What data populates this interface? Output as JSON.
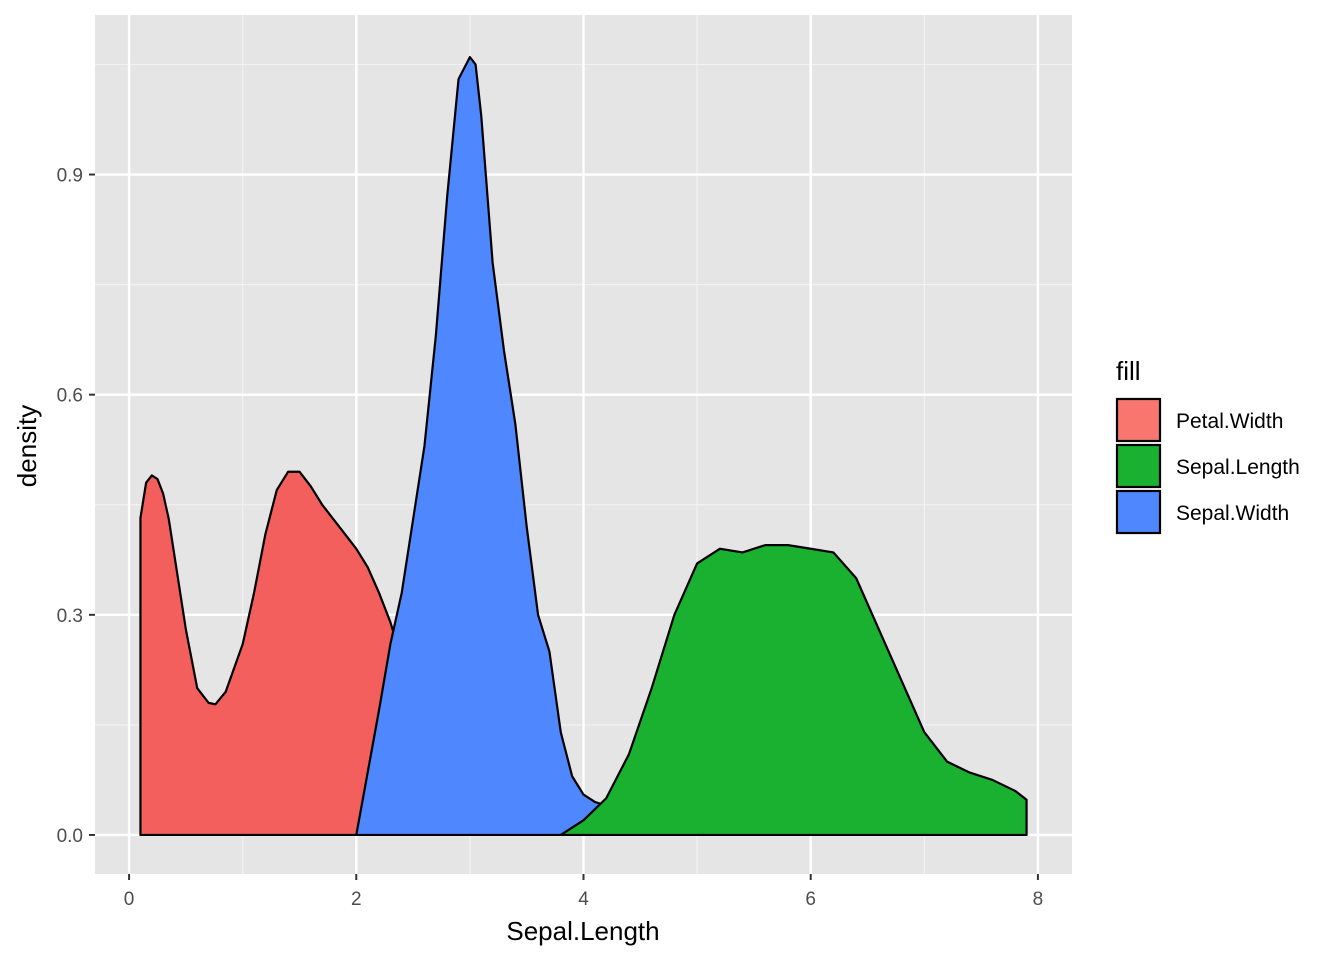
{
  "chart_data": {
    "type": "area",
    "subtype": "density",
    "xlabel": "Sepal.Length",
    "ylabel": "density",
    "xlim": [
      -0.3,
      8.3
    ],
    "ylim": [
      -0.0532,
      1.1174
    ],
    "x_ticks": [
      0,
      2,
      4,
      6,
      8
    ],
    "x_tick_labels": [
      "0",
      "2",
      "4",
      "6",
      "8"
    ],
    "y_ticks": [
      0.0,
      0.3,
      0.6,
      0.9
    ],
    "y_tick_labels": [
      "0.0",
      "0.3",
      "0.6",
      "0.9"
    ],
    "grid": true,
    "panel_background": "#e5e5e5",
    "legend": {
      "title": "fill",
      "position": "right",
      "entries": [
        {
          "label": "Petal.Width",
          "color": "#f8766d"
        },
        {
          "label": "Sepal.Length",
          "color": "#19b12f"
        },
        {
          "label": "Sepal.Width",
          "color": "#4f87ff"
        }
      ]
    },
    "series": [
      {
        "name": "Petal.Width",
        "color": "#f35f5c",
        "x": [
          0.1,
          0.15,
          0.2,
          0.25,
          0.3,
          0.35,
          0.4,
          0.5,
          0.6,
          0.7,
          0.76,
          0.85,
          1.0,
          1.1,
          1.2,
          1.3,
          1.4,
          1.5,
          1.6,
          1.7,
          1.8,
          1.9,
          2.0,
          2.1,
          2.2,
          2.3,
          2.4,
          2.5,
          2.6,
          2.7,
          2.8,
          2.9,
          3.0,
          3.1,
          3.2,
          3.4,
          3.6
        ],
        "y": [
          0.432,
          0.48,
          0.49,
          0.485,
          0.465,
          0.43,
          0.38,
          0.28,
          0.2,
          0.18,
          0.178,
          0.195,
          0.26,
          0.33,
          0.41,
          0.47,
          0.495,
          0.495,
          0.475,
          0.45,
          0.43,
          0.41,
          0.39,
          0.365,
          0.33,
          0.29,
          0.24,
          0.185,
          0.13,
          0.085,
          0.045,
          0.02,
          0.008,
          0.003,
          0.001,
          0.0,
          0.0
        ]
      },
      {
        "name": "Sepal.Width",
        "color": "#4f87ff",
        "x": [
          2.0,
          2.2,
          2.3,
          2.4,
          2.5,
          2.6,
          2.7,
          2.8,
          2.9,
          3.0,
          3.05,
          3.1,
          3.2,
          3.3,
          3.4,
          3.5,
          3.6,
          3.7,
          3.8,
          3.9,
          4.0,
          4.1,
          4.2,
          4.3,
          4.4,
          4.5,
          4.6,
          4.7,
          4.8
        ],
        "y": [
          0.0,
          0.17,
          0.26,
          0.33,
          0.43,
          0.53,
          0.68,
          0.87,
          1.03,
          1.06,
          1.05,
          0.98,
          0.78,
          0.66,
          0.56,
          0.42,
          0.3,
          0.25,
          0.14,
          0.08,
          0.055,
          0.045,
          0.04,
          0.03,
          0.02,
          0.01,
          0.005,
          0.002,
          0.0
        ]
      },
      {
        "name": "Sepal.Length",
        "color": "#19b12f",
        "x": [
          3.8,
          4.0,
          4.2,
          4.4,
          4.6,
          4.8,
          5.0,
          5.2,
          5.4,
          5.6,
          5.8,
          6.0,
          6.2,
          6.4,
          6.6,
          6.8,
          7.0,
          7.2,
          7.4,
          7.6,
          7.8,
          7.9
        ],
        "y": [
          0.0,
          0.02,
          0.05,
          0.11,
          0.2,
          0.3,
          0.37,
          0.39,
          0.385,
          0.395,
          0.395,
          0.39,
          0.385,
          0.35,
          0.28,
          0.21,
          0.14,
          0.1,
          0.085,
          0.075,
          0.06,
          0.048
        ]
      }
    ]
  }
}
